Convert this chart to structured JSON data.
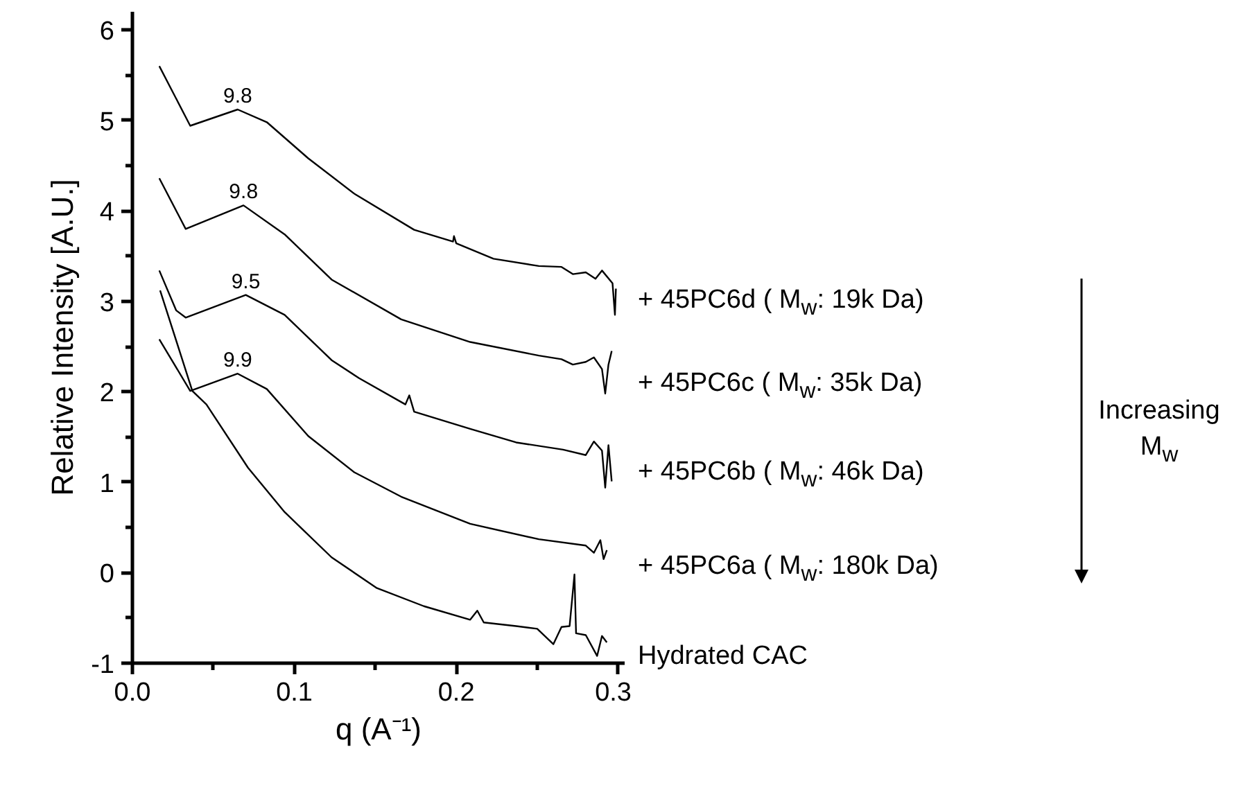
{
  "chart_data": {
    "type": "line",
    "xlabel": "q (A⁻¹)",
    "ylabel": "Relative Intensity [A.U.]",
    "xlim": [
      0,
      0.304
    ],
    "ylim": [
      -1,
      6.2
    ],
    "xticks": [
      {
        "value": 0,
        "label": "0.0"
      },
      {
        "value": 0.05,
        "label": null
      },
      {
        "value": 0.1,
        "label": "0.1"
      },
      {
        "value": 0.15,
        "label": null
      },
      {
        "value": 0.2,
        "label": "0.2"
      },
      {
        "value": 0.25,
        "label": null
      },
      {
        "value": 0.3,
        "label": "0.3"
      }
    ],
    "yticks": [
      -1,
      {
        "value": -0.5,
        "label": null
      },
      0,
      {
        "value": 0.5,
        "label": null
      },
      1,
      {
        "value": 1.5,
        "label": null
      },
      2,
      {
        "value": 2.5,
        "label": null
      },
      3,
      {
        "value": 3.5,
        "label": null
      },
      4,
      {
        "value": 4.5,
        "label": null
      },
      5,
      {
        "value": 5.5,
        "label": null
      },
      6
    ],
    "grid": false,
    "marker": "none",
    "line_style": "solid",
    "series": [
      {
        "name": "+ 45PC6d ( M$_{w}$: 19k Da)",
        "color": "#000000",
        "x": [
          0.0166,
          0.0357,
          0.065,
          0.083,
          0.1086,
          0.137,
          0.174,
          0.198,
          0.1986,
          0.2,
          0.223,
          0.251,
          0.265,
          0.272,
          0.28,
          0.286,
          0.29,
          0.2965,
          0.298,
          0.2986
        ],
        "values": [
          5.6,
          4.94,
          5.12,
          4.98,
          4.58,
          4.19,
          3.79,
          3.66,
          3.72,
          3.64,
          3.47,
          3.39,
          3.38,
          3.3,
          3.32,
          3.25,
          3.34,
          3.2,
          2.85,
          3.14
        ]
      },
      {
        "name": "+ 45PC6c ( M$_{w}$: 35k Da)",
        "color": "#000000",
        "x": [
          0.0166,
          0.0329,
          0.0686,
          0.094,
          0.123,
          0.166,
          0.2086,
          0.251,
          0.265,
          0.272,
          0.28,
          0.285,
          0.29,
          0.292,
          0.294,
          0.296
        ],
        "values": [
          4.36,
          3.8,
          4.06,
          3.74,
          3.24,
          2.8,
          2.55,
          2.4,
          2.36,
          2.3,
          2.33,
          2.38,
          2.25,
          1.98,
          2.3,
          2.45
        ]
      },
      {
        "name": "+ 45PC6b ( M$_{w}$: 46k Da)",
        "color": "#000000",
        "x": [
          0.0166,
          0.027,
          0.0329,
          0.07,
          0.094,
          0.123,
          0.14,
          0.1686,
          0.171,
          0.174,
          0.2086,
          0.237,
          0.266,
          0.28,
          0.285,
          0.29,
          0.292,
          0.294,
          0.296
        ],
        "values": [
          3.34,
          2.9,
          2.82,
          3.07,
          2.85,
          2.35,
          2.15,
          1.86,
          1.96,
          1.78,
          1.59,
          1.44,
          1.36,
          1.3,
          1.45,
          1.35,
          0.94,
          1.41,
          1.01
        ]
      },
      {
        "name": "+ 45PC6a ( M$_{w}$: 180k Da)",
        "color": "#000000",
        "x": [
          0.0166,
          0.0357,
          0.065,
          0.083,
          0.1086,
          0.137,
          0.166,
          0.2086,
          0.251,
          0.28,
          0.285,
          0.289,
          0.291,
          0.293
        ],
        "values": [
          2.58,
          2.01,
          2.2,
          2.03,
          1.51,
          1.11,
          0.84,
          0.54,
          0.37,
          0.3,
          0.22,
          0.36,
          0.15,
          0.25
        ]
      },
      {
        "name": "Hydrated CAC",
        "color": "#000000",
        "x": [
          0.0171,
          0.037,
          0.0457,
          0.0714,
          0.094,
          0.123,
          0.151,
          0.18,
          0.2086,
          0.213,
          0.217,
          0.237,
          0.25,
          0.26,
          0.265,
          0.27,
          0.273,
          0.274,
          0.28,
          0.287,
          0.29,
          0.293
        ],
        "values": [
          3.12,
          2.01,
          1.86,
          1.16,
          0.67,
          0.17,
          -0.17,
          -0.37,
          -0.52,
          -0.42,
          -0.55,
          -0.59,
          -0.62,
          -0.79,
          -0.6,
          -0.59,
          -0.02,
          -0.67,
          -0.69,
          -0.92,
          -0.7,
          -0.77
        ]
      }
    ],
    "annotations": [
      {
        "text": "9.8",
        "x": 0.065,
        "y": 5.12
      },
      {
        "text": "9.8",
        "x": 0.0686,
        "y": 4.06
      },
      {
        "text": "9.5",
        "x": 0.07,
        "y": 3.07
      },
      {
        "text": "9.9",
        "x": 0.065,
        "y": 2.2
      },
      "Increasing M$_{w}$"
    ]
  }
}
